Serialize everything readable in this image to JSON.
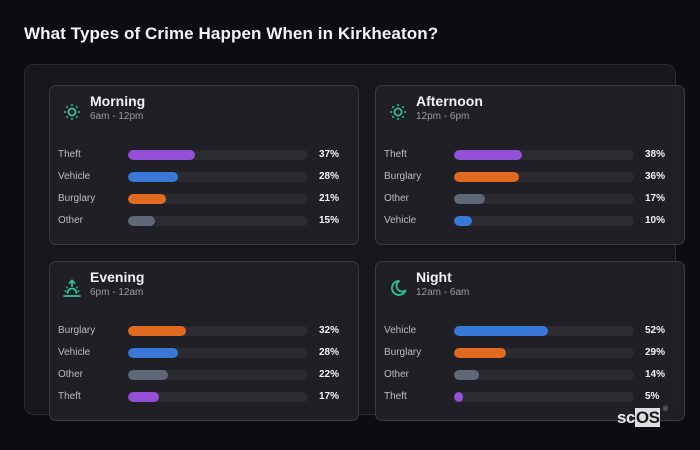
{
  "title": "What Types of Crime Happen When in Kirkheaton?",
  "logo": {
    "prefix": "sc",
    "highlight": "OS",
    "mark": "®"
  },
  "colors": {
    "Theft": "#9550d8",
    "Vehicle": "#3a78d8",
    "Burglary": "#e06a1f",
    "Other": "#5f6878",
    "icon": "#2bc49a"
  },
  "cards": [
    {
      "name": "Morning",
      "range": "6am - 12pm",
      "icon": "sun-icon",
      "rows": [
        {
          "label": "Theft",
          "value": 37,
          "pct": "37%"
        },
        {
          "label": "Vehicle",
          "value": 28,
          "pct": "28%"
        },
        {
          "label": "Burglary",
          "value": 21,
          "pct": "21%"
        },
        {
          "label": "Other",
          "value": 15,
          "pct": "15%"
        }
      ]
    },
    {
      "name": "Afternoon",
      "range": "12pm - 6pm",
      "icon": "sun-icon",
      "rows": [
        {
          "label": "Theft",
          "value": 38,
          "pct": "38%"
        },
        {
          "label": "Burglary",
          "value": 36,
          "pct": "36%"
        },
        {
          "label": "Other",
          "value": 17,
          "pct": "17%"
        },
        {
          "label": "Vehicle",
          "value": 10,
          "pct": "10%"
        }
      ]
    },
    {
      "name": "Evening",
      "range": "6pm - 12am",
      "icon": "sunset-icon",
      "rows": [
        {
          "label": "Burglary",
          "value": 32,
          "pct": "32%"
        },
        {
          "label": "Vehicle",
          "value": 28,
          "pct": "28%"
        },
        {
          "label": "Other",
          "value": 22,
          "pct": "22%"
        },
        {
          "label": "Theft",
          "value": 17,
          "pct": "17%"
        }
      ]
    },
    {
      "name": "Night",
      "range": "12am - 6am",
      "icon": "moon-icon",
      "rows": [
        {
          "label": "Vehicle",
          "value": 52,
          "pct": "52%"
        },
        {
          "label": "Burglary",
          "value": 29,
          "pct": "29%"
        },
        {
          "label": "Other",
          "value": 14,
          "pct": "14%"
        },
        {
          "label": "Theft",
          "value": 5,
          "pct": "5%"
        }
      ]
    }
  ],
  "chart_data": [
    {
      "type": "bar",
      "orientation": "horizontal",
      "title": "Morning",
      "subtitle": "6am - 12pm",
      "categories": [
        "Theft",
        "Vehicle",
        "Burglary",
        "Other"
      ],
      "values": [
        37,
        28,
        21,
        15
      ],
      "unit": "%",
      "xlim": [
        0,
        100
      ]
    },
    {
      "type": "bar",
      "orientation": "horizontal",
      "title": "Afternoon",
      "subtitle": "12pm - 6pm",
      "categories": [
        "Theft",
        "Burglary",
        "Other",
        "Vehicle"
      ],
      "values": [
        38,
        36,
        17,
        10
      ],
      "unit": "%",
      "xlim": [
        0,
        100
      ]
    },
    {
      "type": "bar",
      "orientation": "horizontal",
      "title": "Evening",
      "subtitle": "6pm - 12am",
      "categories": [
        "Burglary",
        "Vehicle",
        "Other",
        "Theft"
      ],
      "values": [
        32,
        28,
        22,
        17
      ],
      "unit": "%",
      "xlim": [
        0,
        100
      ]
    },
    {
      "type": "bar",
      "orientation": "horizontal",
      "title": "Night",
      "subtitle": "12am - 6am",
      "categories": [
        "Vehicle",
        "Burglary",
        "Other",
        "Theft"
      ],
      "values": [
        52,
        29,
        14,
        5
      ],
      "unit": "%",
      "xlim": [
        0,
        100
      ]
    }
  ]
}
